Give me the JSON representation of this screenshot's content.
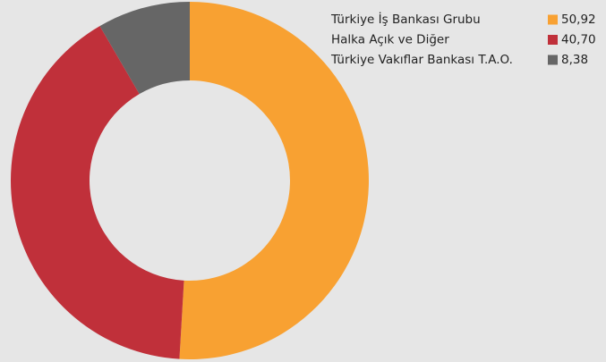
{
  "chart_data": {
    "type": "donut",
    "categories": [
      "Türkiye İş Bankası Grubu",
      "Halka Açık ve Diğer",
      "Türkiye Vakıflar Bankası T.A.O."
    ],
    "values": [
      50.92,
      40.7,
      8.38
    ],
    "value_labels": [
      "50,92",
      "40,70",
      "8,38"
    ],
    "colors": [
      "#f8a132",
      "#c0303a",
      "#666666"
    ],
    "legend": "top-right"
  }
}
